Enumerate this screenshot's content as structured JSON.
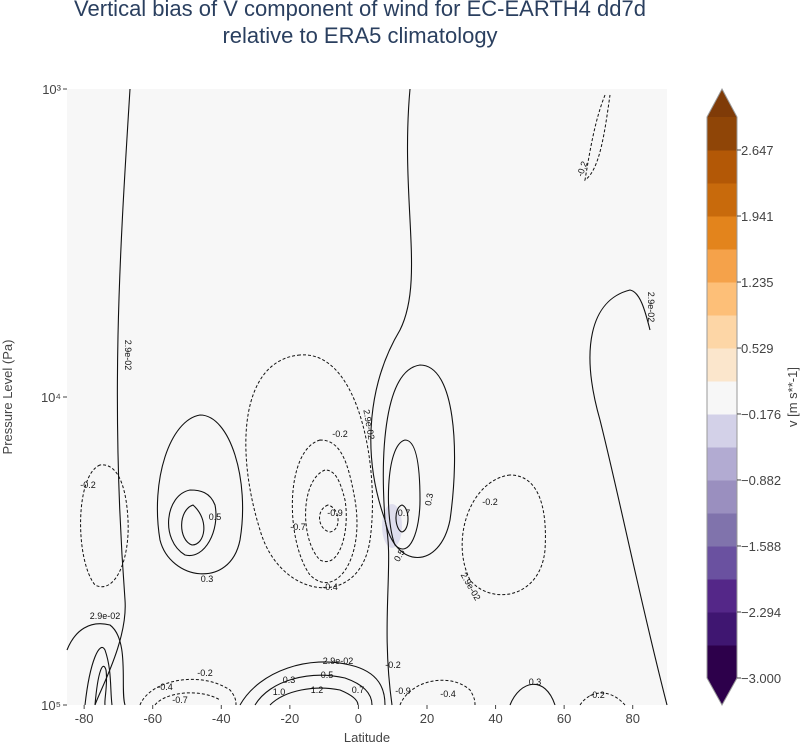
{
  "chart_data": {
    "type": "contour",
    "title": [
      "Vertical bias of V component of wind for EC-EARTH4 dd7d",
      "relative to ERA5 climatology"
    ],
    "xlabel": "Latitude",
    "ylabel": "Pressure Level (Pa)",
    "xlim": [
      -85,
      90
    ],
    "xticks": [
      -80,
      -60,
      -40,
      -20,
      0,
      20,
      40,
      60,
      80
    ],
    "ylim": [
      1000,
      100000
    ],
    "ylog": true,
    "y_reversed": true,
    "yticks": [
      {
        "value": 1000,
        "label": "10³"
      },
      {
        "value": 10000,
        "label": "10⁴"
      },
      {
        "value": 100000,
        "label": "10⁵"
      }
    ],
    "colorbar": {
      "title": "v [m s**-1]",
      "lim": [
        -3,
        3
      ],
      "ticks": [
        {
          "value": 2.647,
          "label": "2.647"
        },
        {
          "value": 1.941,
          "label": "1.941"
        },
        {
          "value": 1.235,
          "label": "1.235"
        },
        {
          "value": 0.529,
          "label": "0.529"
        },
        {
          "value": -0.176,
          "label": "−0.176"
        },
        {
          "value": -0.882,
          "label": "−0.882"
        },
        {
          "value": -1.588,
          "label": "−1.588"
        },
        {
          "value": -2.294,
          "label": "−2.294"
        },
        {
          "value": -3,
          "label": "−3.000"
        }
      ],
      "colors": [
        "#2d004b",
        "#3f1671",
        "#542788",
        "#6a51a0",
        "#8073ac",
        "#9a8fbf",
        "#b2abd2",
        "#d3d1e8",
        "#f7f7f7",
        "#fbe6cc",
        "#fdd6a6",
        "#fdbf78",
        "#f5a24a",
        "#e3841c",
        "#c86a0c",
        "#b35806",
        "#8f4507"
      ],
      "extend_colors": [
        "#2d004b",
        "#7f3b08"
      ]
    },
    "contour_labels": [
      {
        "value": 0.029,
        "label": "2.9e-02"
      },
      -0.2,
      {
        "value": 0.029,
        "label": "2.9e-02"
      },
      -0.2,
      0.5,
      0.3,
      -0.2,
      {
        "value": 0.029,
        "label": "2.9e-02"
      },
      -0.7,
      -0.9,
      -0.4,
      0.3,
      0.7,
      0.5,
      -0.2,
      {
        "value": 0.029,
        "label": "2.9e-02"
      },
      {
        "value": 0.029,
        "label": "2.9e-02"
      },
      -0.2,
      {
        "value": 0.029,
        "label": "2.9e-02"
      },
      0.3,
      0.5,
      1.2,
      -0.2,
      -0.9,
      -0.4,
      0.3,
      -0.2,
      -0.4,
      -0.7,
      0.7,
      {
        "value": 1,
        "label": "1.0"
      }
    ]
  }
}
